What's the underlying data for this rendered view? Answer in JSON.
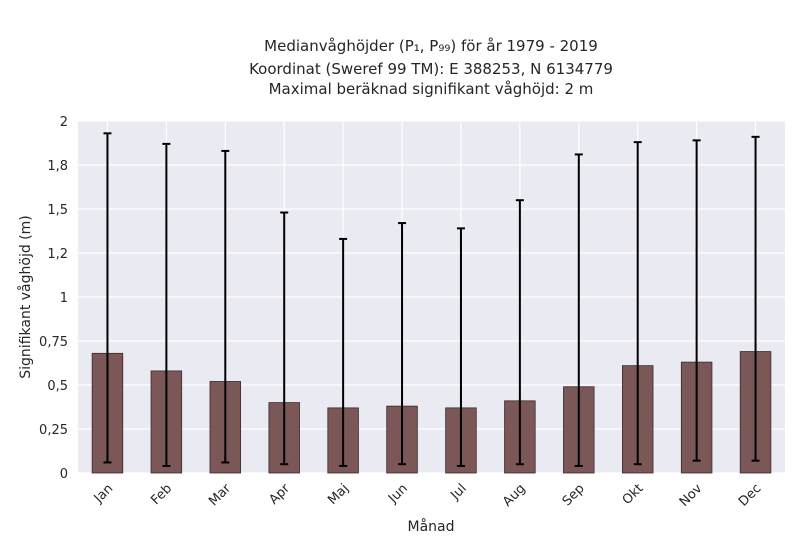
{
  "chart_data": {
    "type": "bar",
    "title_lines": [
      "Medianvåghöjder (P₁, P₉₉) för år 1979 - 2019",
      "Koordinat (Sweref 99 TM): E 388253, N 6134779",
      "Maximal beräknad signifikant våghöjd: 2 m"
    ],
    "xlabel": "Månad",
    "ylabel": "Signifikant våghöjd (m)",
    "categories": [
      "Jan",
      "Feb",
      "Mar",
      "Apr",
      "Maj",
      "Jun",
      "Jul",
      "Aug",
      "Sep",
      "Okt",
      "Nov",
      "Dec"
    ],
    "values": [
      0.68,
      0.58,
      0.52,
      0.4,
      0.37,
      0.38,
      0.37,
      0.41,
      0.49,
      0.61,
      0.63,
      0.69
    ],
    "err_low": [
      0.06,
      0.04,
      0.06,
      0.05,
      0.04,
      0.05,
      0.04,
      0.05,
      0.04,
      0.05,
      0.07,
      0.07
    ],
    "err_high": [
      1.93,
      1.87,
      1.83,
      1.48,
      1.33,
      1.42,
      1.39,
      1.55,
      1.81,
      1.88,
      1.89,
      1.91
    ],
    "ylim": [
      0,
      2
    ],
    "yticks": [
      0,
      0.25,
      0.5,
      0.75,
      1,
      1.25,
      1.5,
      1.75,
      2
    ],
    "ytick_labels": [
      "0",
      "0,25",
      "0,5",
      "0,75",
      "1",
      "1,2",
      "1,5",
      "1,8",
      "2"
    ],
    "grid": true,
    "legend": "none",
    "colors": {
      "bar": "#7b5757",
      "background": "#eaeaf2",
      "error": "#000000",
      "grid": "#ffffff"
    }
  }
}
